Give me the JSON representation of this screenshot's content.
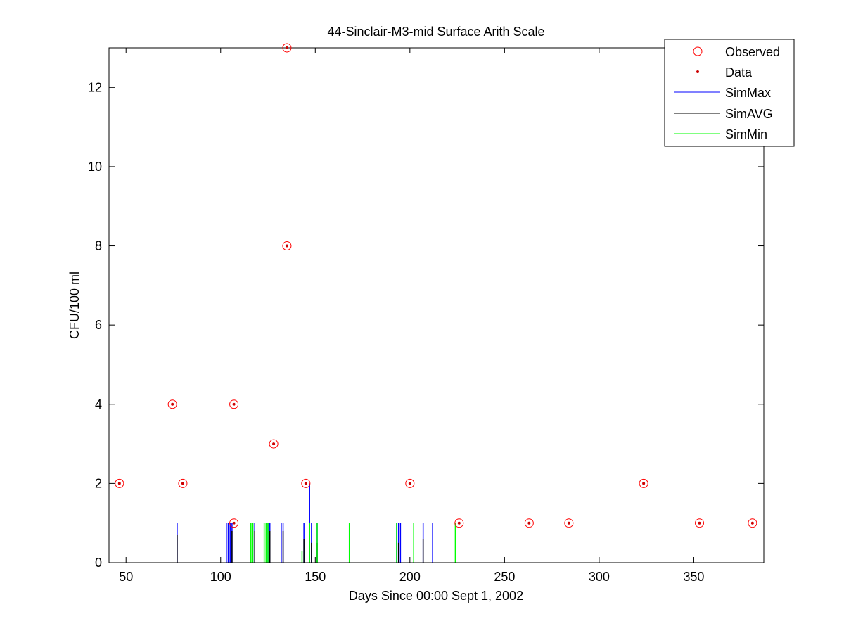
{
  "chart_data": {
    "type": "scatter",
    "title": "44-Sinclair-M3-mid Surface Arith Scale",
    "xlabel": "Days Since 00:00 Sept 1, 2002",
    "ylabel": "CFU/100 ml",
    "xlim": [
      41,
      387
    ],
    "ylim": [
      0,
      13
    ],
    "xticks": [
      50,
      100,
      150,
      200,
      250,
      300,
      350
    ],
    "yticks": [
      0,
      2,
      4,
      6,
      8,
      10,
      12
    ],
    "grid": false,
    "legend_position": "top-right",
    "series": [
      {
        "name": "Observed",
        "kind": "marker-circle",
        "color": "#ff0000",
        "points": [
          [
            46.5,
            2
          ],
          [
            74.5,
            4
          ],
          [
            80,
            2
          ],
          [
            107,
            4
          ],
          [
            107,
            1
          ],
          [
            128,
            3
          ],
          [
            135,
            13
          ],
          [
            135,
            8
          ],
          [
            145,
            2
          ],
          [
            200,
            2
          ],
          [
            226,
            1
          ],
          [
            263,
            1
          ],
          [
            284,
            1
          ],
          [
            323.5,
            2
          ],
          [
            353,
            1
          ],
          [
            381,
            1
          ]
        ]
      },
      {
        "name": "Data",
        "kind": "marker-dot",
        "color": "#cc0000",
        "points": [
          [
            46.5,
            2
          ],
          [
            74.5,
            4
          ],
          [
            80,
            2
          ],
          [
            107,
            4
          ],
          [
            107,
            1
          ],
          [
            128,
            3
          ],
          [
            135,
            13
          ],
          [
            135,
            8
          ],
          [
            145,
            2
          ],
          [
            200,
            2
          ],
          [
            226,
            1
          ],
          [
            263,
            1
          ],
          [
            284,
            1
          ],
          [
            323.5,
            2
          ],
          [
            353,
            1
          ],
          [
            381,
            1
          ]
        ]
      },
      {
        "name": "SimMax",
        "kind": "spike",
        "color": "#0000ff",
        "points": [
          [
            77,
            1
          ],
          [
            103,
            1
          ],
          [
            104,
            1
          ],
          [
            105,
            1
          ],
          [
            106,
            1
          ],
          [
            117,
            1
          ],
          [
            118,
            1
          ],
          [
            125,
            1
          ],
          [
            126,
            1
          ],
          [
            132,
            1
          ],
          [
            133,
            1
          ],
          [
            144,
            1
          ],
          [
            147,
            2
          ],
          [
            148,
            1
          ],
          [
            151,
            1
          ],
          [
            168,
            1
          ],
          [
            193,
            1
          ],
          [
            194,
            1
          ],
          [
            195,
            1
          ],
          [
            207,
            1
          ],
          [
            212,
            1
          ]
        ]
      },
      {
        "name": "SimAVG",
        "kind": "spike",
        "color": "#000000",
        "points": [
          [
            77,
            0.7
          ],
          [
            106,
            0.8
          ],
          [
            118,
            0.8
          ],
          [
            126,
            0.8
          ],
          [
            133,
            0.8
          ],
          [
            144,
            0.6
          ],
          [
            148,
            0.5
          ],
          [
            151,
            0.5
          ],
          [
            194,
            0.5
          ],
          [
            207,
            0.6
          ]
        ]
      },
      {
        "name": "SimMin",
        "kind": "spike",
        "color": "#00ff00",
        "points": [
          [
            116,
            1
          ],
          [
            117,
            1
          ],
          [
            123,
            1
          ],
          [
            124,
            1
          ],
          [
            125,
            1
          ],
          [
            143,
            0.3
          ],
          [
            147,
            1
          ],
          [
            151,
            1
          ],
          [
            168,
            1
          ],
          [
            193,
            1
          ],
          [
            202,
            1
          ],
          [
            224,
            1
          ]
        ]
      }
    ]
  }
}
